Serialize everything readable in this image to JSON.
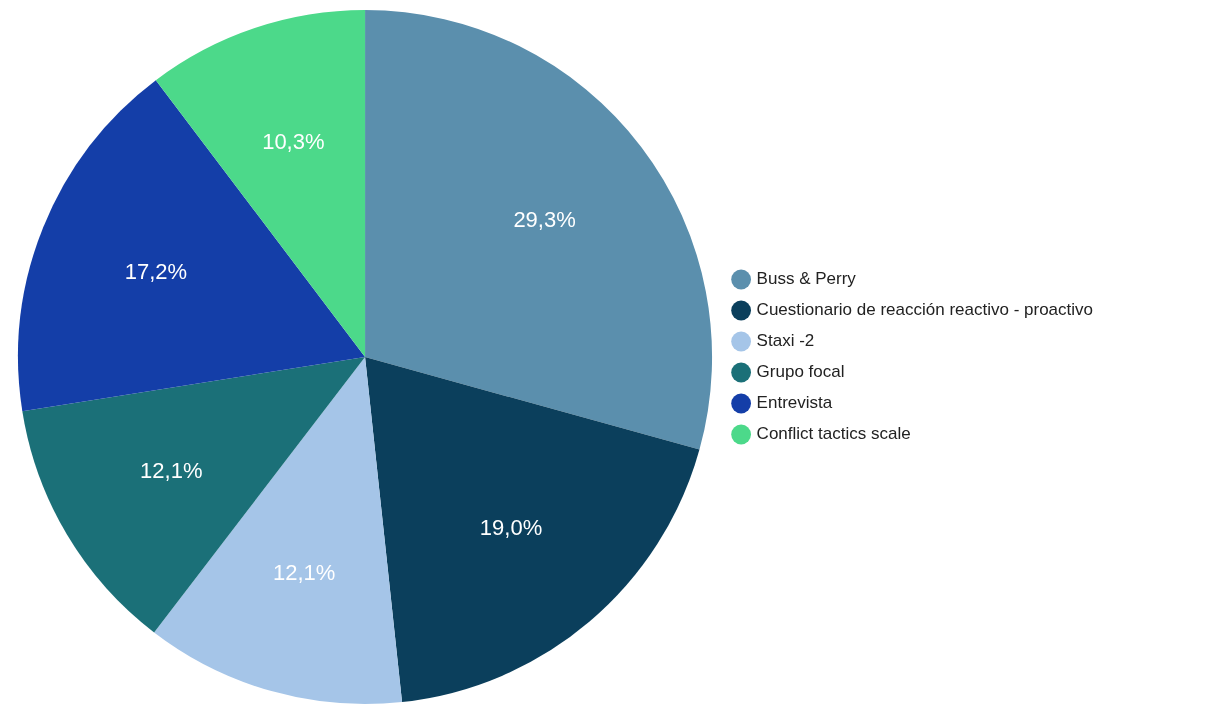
{
  "chart_data": {
    "type": "pie",
    "categories": [
      "Buss & Perry",
      "Cuestionario de reacción reactivo - proactivo",
      "Staxi -2",
      "Grupo focal",
      "Entrevista",
      "Conflict tactics scale"
    ],
    "values": [
      29.3,
      19.0,
      12.1,
      12.1,
      17.2,
      10.3
    ],
    "value_labels": [
      "29,3%",
      "19,0%",
      "12,1%",
      "12,1%",
      "17,2%",
      "10,3%"
    ],
    "colors": [
      "#5b8fad",
      "#0b3f5c",
      "#a5c5e8",
      "#1b7078",
      "#143ea8",
      "#4cd98a"
    ],
    "legend": "right"
  }
}
